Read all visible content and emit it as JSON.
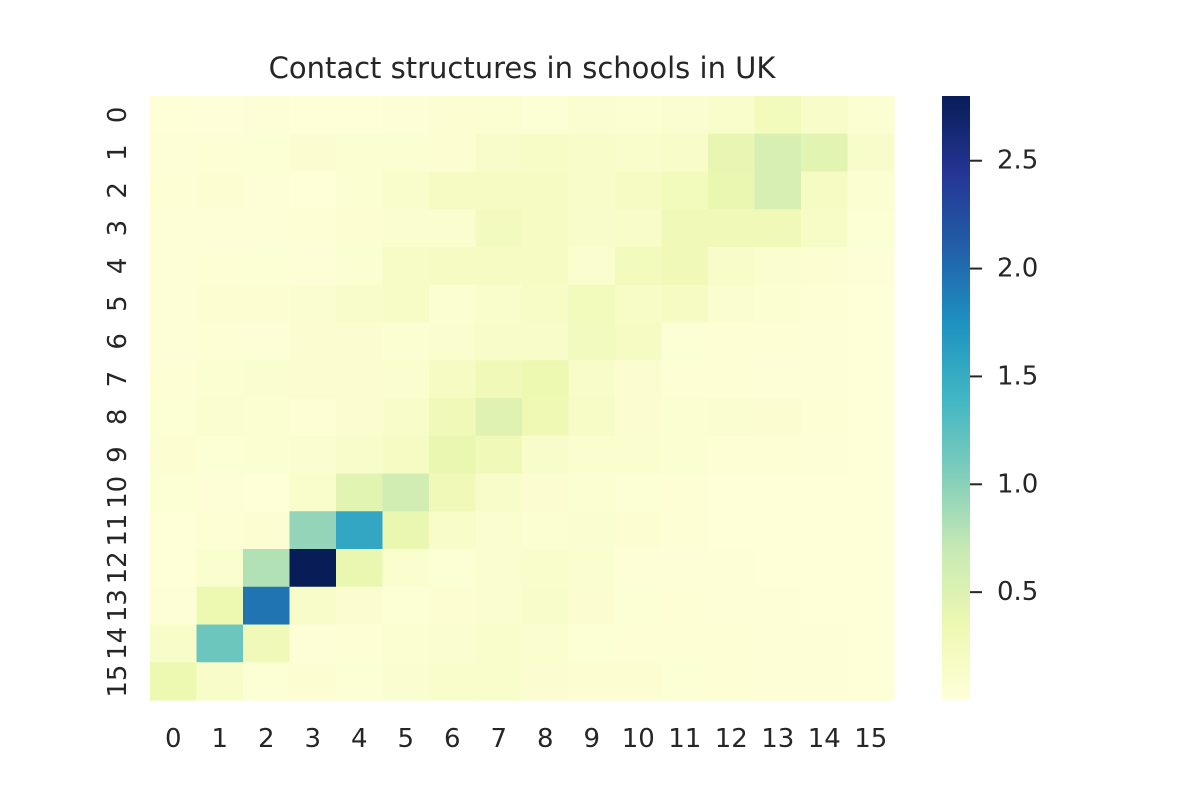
{
  "chart_data": {
    "type": "heatmap",
    "title": "Contact structures in schools in UK",
    "xlabel": "",
    "ylabel": "",
    "x_categories": [
      "0",
      "1",
      "2",
      "3",
      "4",
      "5",
      "6",
      "7",
      "8",
      "9",
      "10",
      "11",
      "12",
      "13",
      "14",
      "15"
    ],
    "y_categories": [
      "0",
      "1",
      "2",
      "3",
      "4",
      "5",
      "6",
      "7",
      "8",
      "9",
      "10",
      "11",
      "12",
      "13",
      "14",
      "15"
    ],
    "colormap": "YlGnBu",
    "color_range": [
      0.0,
      2.8
    ],
    "colorbar_ticks": [
      0.5,
      1.0,
      1.5,
      2.0,
      2.5
    ],
    "colorbar_tick_labels": [
      "0.5",
      "1.0",
      "1.5",
      "2.0",
      "2.5"
    ],
    "values": [
      [
        0.02,
        0.01,
        0.03,
        0.02,
        0.02,
        0.03,
        0.06,
        0.07,
        0.05,
        0.09,
        0.07,
        0.09,
        0.12,
        0.25,
        0.15,
        0.07
      ],
      [
        0.03,
        0.04,
        0.05,
        0.08,
        0.07,
        0.07,
        0.06,
        0.13,
        0.16,
        0.14,
        0.12,
        0.14,
        0.4,
        0.55,
        0.45,
        0.13
      ],
      [
        0.04,
        0.06,
        0.03,
        0.02,
        0.07,
        0.12,
        0.18,
        0.18,
        0.2,
        0.15,
        0.18,
        0.25,
        0.38,
        0.55,
        0.18,
        0.07
      ],
      [
        0.03,
        0.03,
        0.03,
        0.04,
        0.06,
        0.1,
        0.1,
        0.23,
        0.18,
        0.13,
        0.15,
        0.28,
        0.28,
        0.28,
        0.16,
        0.05
      ],
      [
        0.03,
        0.04,
        0.05,
        0.03,
        0.07,
        0.16,
        0.2,
        0.18,
        0.18,
        0.1,
        0.25,
        0.3,
        0.15,
        0.1,
        0.06,
        0.03
      ],
      [
        0.03,
        0.06,
        0.06,
        0.1,
        0.13,
        0.16,
        0.07,
        0.11,
        0.16,
        0.25,
        0.16,
        0.18,
        0.1,
        0.07,
        0.04,
        0.02
      ],
      [
        0.03,
        0.04,
        0.03,
        0.08,
        0.08,
        0.07,
        0.1,
        0.15,
        0.15,
        0.23,
        0.18,
        0.05,
        0.04,
        0.04,
        0.03,
        0.02
      ],
      [
        0.04,
        0.07,
        0.1,
        0.08,
        0.08,
        0.1,
        0.2,
        0.28,
        0.35,
        0.15,
        0.08,
        0.04,
        0.04,
        0.03,
        0.03,
        0.02
      ],
      [
        0.05,
        0.1,
        0.07,
        0.04,
        0.08,
        0.15,
        0.28,
        0.48,
        0.32,
        0.16,
        0.08,
        0.07,
        0.09,
        0.08,
        0.04,
        0.02
      ],
      [
        0.06,
        0.05,
        0.07,
        0.09,
        0.13,
        0.2,
        0.38,
        0.28,
        0.13,
        0.1,
        0.1,
        0.07,
        0.04,
        0.04,
        0.03,
        0.02
      ],
      [
        0.05,
        0.03,
        0.02,
        0.12,
        0.45,
        0.6,
        0.28,
        0.15,
        0.08,
        0.07,
        0.05,
        0.04,
        0.02,
        0.02,
        0.02,
        0.02
      ],
      [
        0.02,
        0.04,
        0.06,
        0.95,
        1.55,
        0.38,
        0.15,
        0.1,
        0.07,
        0.09,
        0.06,
        0.04,
        0.02,
        0.02,
        0.02,
        0.02
      ],
      [
        0.02,
        0.1,
        0.8,
        2.8,
        0.38,
        0.1,
        0.05,
        0.1,
        0.11,
        0.1,
        0.03,
        0.03,
        0.03,
        0.02,
        0.02,
        0.02
      ],
      [
        0.03,
        0.35,
        1.95,
        0.15,
        0.08,
        0.05,
        0.06,
        0.1,
        0.13,
        0.08,
        0.05,
        0.04,
        0.03,
        0.03,
        0.02,
        0.02
      ],
      [
        0.15,
        1.15,
        0.28,
        0.03,
        0.04,
        0.07,
        0.09,
        0.12,
        0.1,
        0.05,
        0.04,
        0.04,
        0.04,
        0.03,
        0.03,
        0.02
      ],
      [
        0.35,
        0.15,
        0.05,
        0.06,
        0.05,
        0.09,
        0.12,
        0.12,
        0.08,
        0.06,
        0.06,
        0.05,
        0.04,
        0.03,
        0.03,
        0.02
      ]
    ],
    "grid": false,
    "legend": "colorbar right"
  }
}
